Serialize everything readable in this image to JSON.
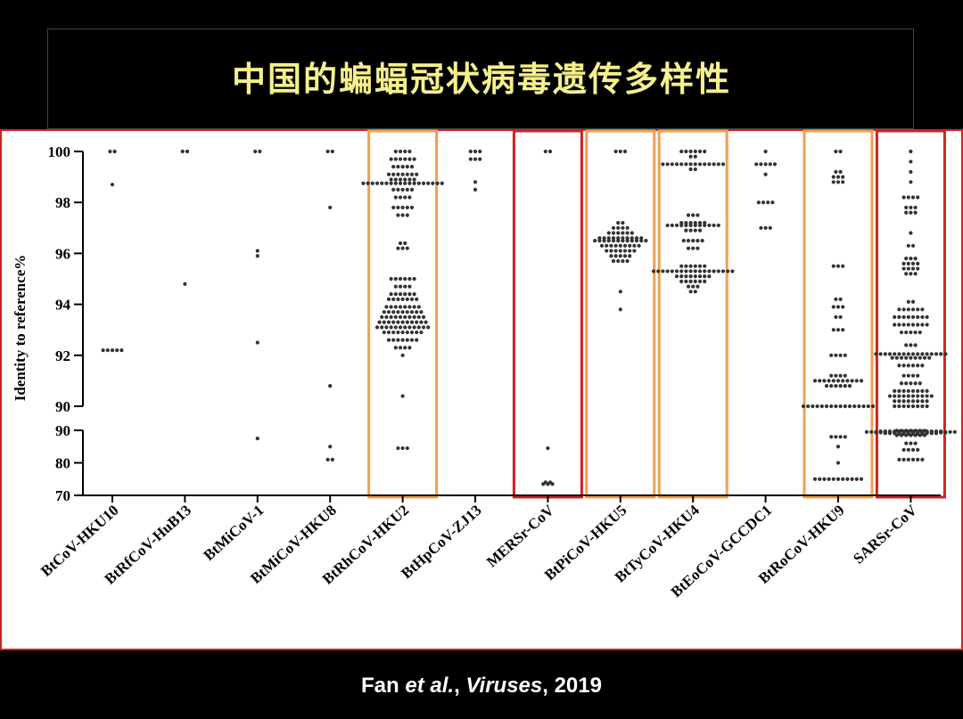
{
  "slide": {
    "title": "中国的蝙蝠冠状病毒遗传多样性",
    "citation": {
      "authors": "Fan",
      "etal": "et al.",
      "sep": ", ",
      "journal": "Viruses",
      "year": ", 2019"
    }
  },
  "chart_data": {
    "type": "scatter",
    "ylabel": "Identity to reference%",
    "y_upper": {
      "range": [
        90,
        100
      ],
      "ticks": [
        "90",
        "92",
        "94",
        "96",
        "98",
        "100"
      ]
    },
    "y_lower": {
      "range": [
        70,
        90
      ],
      "ticks": [
        "70",
        "80",
        "90"
      ]
    },
    "categories": [
      "BtCoV-HKU10",
      "BtRfCoV-HuB13",
      "BtMiCoV-1",
      "BtMiCoV-HKU8",
      "BtRhCoV-HKU2",
      "BtHpCoV-ZJ13",
      "MERSr-CoV",
      "BtPiCoV-HKU5",
      "BtTyCoV-HKU4",
      "BtEoCoV-GCCDC1",
      "BtRoCoV-HKU9",
      "SARSr-CoV"
    ],
    "highlight": {
      "BtRhCoV-HKU2": "#f0a050",
      "MERSr-CoV": "#d42020",
      "BtPiCoV-HKU5": "#f0a050",
      "BtTyCoV-HKU4": "#f0a050",
      "BtRoCoV-HKU9": "#f0a050",
      "SARSr-CoV": "#d42020"
    },
    "groups": [
      [
        [
          100,
          2
        ],
        [
          98.7,
          1
        ],
        [
          92.2,
          5
        ]
      ],
      [
        [
          100,
          2
        ],
        [
          94.8,
          1
        ]
      ],
      [
        [
          100,
          2
        ],
        [
          96.1,
          1
        ],
        [
          95.9,
          1
        ],
        [
          92.5,
          1
        ],
        [
          87.5,
          1
        ]
      ],
      [
        [
          100,
          2
        ],
        [
          97.8,
          1
        ],
        [
          90.8,
          1
        ],
        [
          85,
          1
        ],
        [
          81,
          2
        ]
      ],
      [
        [
          100,
          4
        ],
        [
          99.7,
          6
        ],
        [
          99.4,
          5
        ],
        [
          99.1,
          7
        ],
        [
          98.9,
          6
        ],
        [
          98.75,
          18
        ],
        [
          98.5,
          5
        ],
        [
          98.2,
          4
        ],
        [
          97.8,
          5
        ],
        [
          97.5,
          3
        ],
        [
          96.4,
          2
        ],
        [
          96.2,
          3
        ],
        [
          95,
          6
        ],
        [
          94.7,
          4
        ],
        [
          94.4,
          6
        ],
        [
          94.2,
          7
        ],
        [
          93.9,
          8
        ],
        [
          93.7,
          9
        ],
        [
          93.5,
          10
        ],
        [
          93.3,
          11
        ],
        [
          93.1,
          12
        ],
        [
          92.9,
          9
        ],
        [
          92.6,
          7
        ],
        [
          92.3,
          4
        ],
        [
          92,
          1
        ],
        [
          90.4,
          1
        ],
        [
          84.5,
          3
        ]
      ],
      [
        [
          100,
          3
        ],
        [
          99.7,
          3
        ],
        [
          98.8,
          1
        ],
        [
          98.5,
          1
        ]
      ],
      [
        [
          100,
          2
        ],
        [
          84.5,
          1
        ],
        [
          74,
          2
        ],
        [
          73.5,
          3
        ]
      ],
      [
        [
          100,
          3
        ],
        [
          97.2,
          2
        ],
        [
          97,
          4
        ],
        [
          96.8,
          6
        ],
        [
          96.6,
          10
        ],
        [
          96.5,
          12
        ],
        [
          96.3,
          9
        ],
        [
          96.1,
          7
        ],
        [
          95.9,
          5
        ],
        [
          95.7,
          4
        ],
        [
          94.5,
          1
        ],
        [
          93.8,
          1
        ]
      ],
      [
        [
          100,
          6
        ],
        [
          99.8,
          2
        ],
        [
          99.5,
          14
        ],
        [
          99.3,
          2
        ],
        [
          97.5,
          3
        ],
        [
          97.2,
          6
        ],
        [
          97.1,
          12
        ],
        [
          96.9,
          4
        ],
        [
          96.5,
          5
        ],
        [
          96.2,
          3
        ],
        [
          95.5,
          6
        ],
        [
          95.3,
          18
        ],
        [
          95.1,
          8
        ],
        [
          94.9,
          6
        ],
        [
          94.7,
          3
        ],
        [
          94.5,
          2
        ]
      ],
      [
        [
          100,
          1
        ],
        [
          99.5,
          5
        ],
        [
          99.1,
          1
        ],
        [
          98,
          4
        ],
        [
          97,
          3
        ]
      ],
      [
        [
          100,
          2
        ],
        [
          99.2,
          2
        ],
        [
          99,
          3
        ],
        [
          98.8,
          3
        ],
        [
          95.5,
          3
        ],
        [
          94.2,
          2
        ],
        [
          93.9,
          3
        ],
        [
          93.5,
          2
        ],
        [
          93,
          3
        ],
        [
          92,
          4
        ],
        [
          91.2,
          4
        ],
        [
          91,
          11
        ],
        [
          90.8,
          6
        ],
        [
          90,
          16
        ],
        [
          88,
          4
        ],
        [
          85,
          1
        ],
        [
          80,
          1
        ],
        [
          75,
          11
        ]
      ],
      [
        [
          100,
          1
        ],
        [
          99.6,
          1
        ],
        [
          99.2,
          1
        ],
        [
          98.8,
          1
        ],
        [
          98.2,
          4
        ],
        [
          97.8,
          3
        ],
        [
          97.6,
          3
        ],
        [
          96.8,
          1
        ],
        [
          96.3,
          2
        ],
        [
          95.8,
          3
        ],
        [
          95.6,
          4
        ],
        [
          95.4,
          4
        ],
        [
          95.2,
          3
        ],
        [
          94.1,
          2
        ],
        [
          93.8,
          6
        ],
        [
          93.5,
          8
        ],
        [
          93.2,
          8
        ],
        [
          92.9,
          5
        ],
        [
          92.4,
          3
        ],
        [
          92.05,
          16
        ],
        [
          91.9,
          9
        ],
        [
          91.6,
          6
        ],
        [
          91.2,
          4
        ],
        [
          90.9,
          5
        ],
        [
          90.6,
          8
        ],
        [
          90.4,
          10
        ],
        [
          90.2,
          8
        ],
        [
          89.9,
          7
        ],
        [
          90,
          8
        ],
        [
          89.7,
          14
        ],
        [
          89.5,
          20
        ],
        [
          89.3,
          16
        ],
        [
          89.1,
          12
        ],
        [
          88.9,
          6
        ],
        [
          88.5,
          7
        ],
        [
          86,
          3
        ],
        [
          84,
          4
        ],
        [
          81,
          6
        ]
      ]
    ]
  }
}
